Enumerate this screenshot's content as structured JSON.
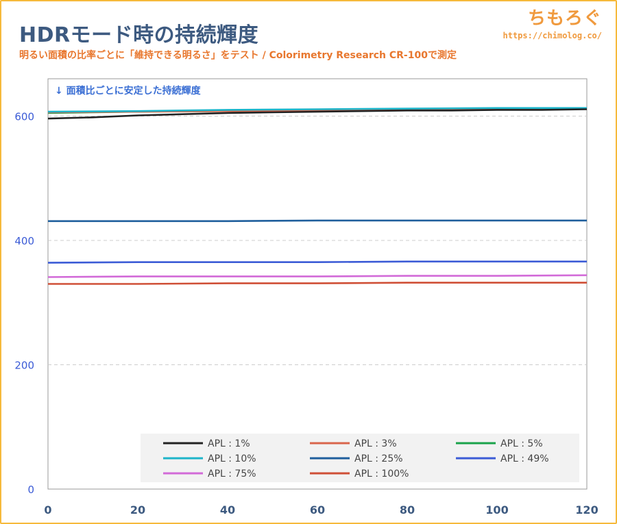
{
  "header": {
    "title": "HDRモード時の持続輝度",
    "subtitle": "明るい面積の比率ごとに「維持できる明るさ」をテスト / Colorimetry Research CR-100で測定",
    "brand_name": "ちもろぐ",
    "brand_url": "https://chimolog.co/"
  },
  "colors": {
    "title": "#3d5a80",
    "subtitle": "#e8772e",
    "brand": "#f09a3e",
    "frame": "#f6b93b"
  },
  "chart_data": {
    "type": "line",
    "annotation": "↓ 面積比ごとに安定した持続輝度",
    "xlabel": "",
    "ylabel": "",
    "xlim": [
      0,
      120
    ],
    "ylim": [
      0,
      660
    ],
    "xticks": [
      0,
      20,
      40,
      60,
      80,
      100,
      120
    ],
    "yticks": [
      0,
      200,
      400,
      600
    ],
    "grid": "horizontal-dashed",
    "legend_position": "bottom",
    "series": [
      {
        "name": "APL : 1%",
        "color": "#222222",
        "x": [
          0,
          10,
          20,
          30,
          40,
          50,
          60,
          70,
          80,
          90,
          100,
          110,
          120
        ],
        "y": [
          596,
          598,
          601,
          603,
          605,
          606,
          607,
          608,
          609,
          609,
          610,
          610,
          611
        ]
      },
      {
        "name": "APL : 3%",
        "color": "#d9654b",
        "x": [
          0,
          20,
          40,
          60,
          80,
          100,
          120
        ],
        "y": [
          606,
          607,
          608,
          609,
          610,
          611,
          612
        ]
      },
      {
        "name": "APL : 5%",
        "color": "#1aa34a",
        "x": [
          0,
          20,
          40,
          60,
          80,
          100,
          120
        ],
        "y": [
          605,
          607,
          608,
          609,
          610,
          611,
          612
        ]
      },
      {
        "name": "APL : 10%",
        "color": "#1cb4c9",
        "x": [
          0,
          20,
          40,
          60,
          80,
          100,
          120
        ],
        "y": [
          607,
          608,
          610,
          611,
          612,
          613,
          613
        ]
      },
      {
        "name": "APL : 25%",
        "color": "#1e5e9c",
        "x": [
          0,
          20,
          40,
          60,
          80,
          100,
          120
        ],
        "y": [
          431,
          431,
          431,
          432,
          432,
          432,
          432
        ]
      },
      {
        "name": "APL : 49%",
        "color": "#3b5bd6",
        "x": [
          0,
          20,
          40,
          60,
          80,
          100,
          120
        ],
        "y": [
          364,
          365,
          365,
          365,
          366,
          366,
          366
        ]
      },
      {
        "name": "APL : 75%",
        "color": "#d26ad8",
        "x": [
          0,
          20,
          40,
          60,
          80,
          100,
          120
        ],
        "y": [
          341,
          342,
          342,
          342,
          343,
          343,
          344
        ]
      },
      {
        "name": "APL : 100%",
        "color": "#cf4f36",
        "x": [
          0,
          20,
          40,
          60,
          80,
          100,
          120
        ],
        "y": [
          330,
          330,
          331,
          331,
          332,
          332,
          332
        ]
      }
    ]
  }
}
